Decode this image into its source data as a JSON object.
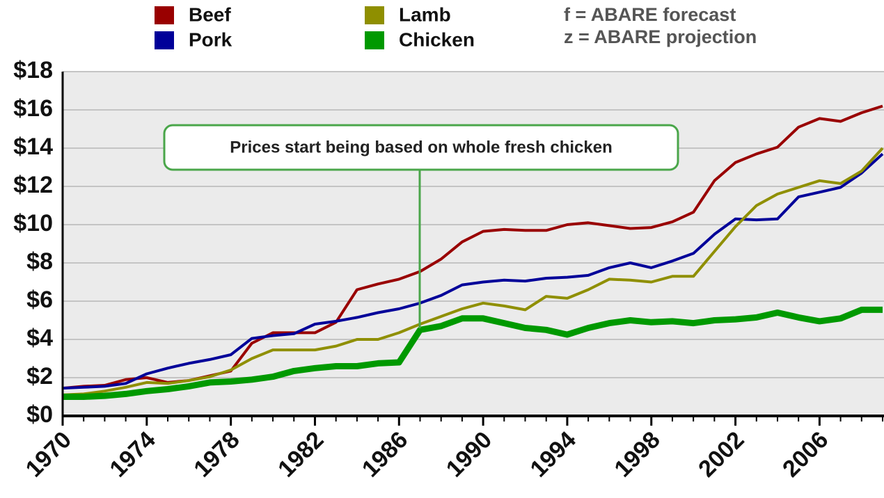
{
  "chart_data": {
    "type": "line",
    "legend_notes": [
      "f  = ABARE forecast",
      "z = ABARE projection"
    ],
    "annotation": "Prices start being based on whole fresh chicken",
    "x": [
      1970,
      1971,
      1972,
      1973,
      1974,
      1975,
      1976,
      1977,
      1978,
      1979,
      1980,
      1981,
      1982,
      1983,
      1984,
      1985,
      1986,
      1987,
      1988,
      1989,
      1990,
      1991,
      1992,
      1993,
      1994,
      1995,
      1996,
      1997,
      1998,
      1999,
      2000,
      2001,
      2002,
      2003,
      2004,
      2005,
      2006,
      2007,
      2008,
      2009
    ],
    "series": [
      {
        "name": "Beef",
        "color": "#990000",
        "values": [
          1.45,
          1.55,
          1.6,
          1.9,
          2.0,
          1.75,
          1.85,
          2.1,
          2.35,
          3.8,
          4.35,
          4.35,
          4.35,
          4.9,
          6.6,
          6.9,
          7.15,
          7.55,
          8.2,
          9.1,
          9.65,
          9.75,
          9.7,
          9.7,
          10.0,
          10.1,
          9.95,
          9.8,
          9.85,
          10.15,
          10.65,
          12.3,
          13.25,
          13.7,
          14.05,
          15.1,
          15.55,
          15.4,
          15.85,
          16.2
        ]
      },
      {
        "name": "Pork",
        "color": "#000099",
        "values": [
          1.45,
          1.5,
          1.55,
          1.7,
          2.2,
          2.5,
          2.75,
          2.95,
          3.2,
          4.05,
          4.2,
          4.3,
          4.8,
          4.95,
          5.15,
          5.4,
          5.6,
          5.9,
          6.3,
          6.85,
          7.0,
          7.1,
          7.05,
          7.2,
          7.25,
          7.35,
          7.75,
          8.0,
          7.75,
          8.1,
          8.5,
          9.5,
          10.3,
          10.25,
          10.3,
          11.45,
          11.7,
          11.95,
          12.7,
          13.7
        ]
      },
      {
        "name": "Lamb",
        "color": "#8f8f00",
        "values": [
          1.1,
          1.15,
          1.3,
          1.5,
          1.75,
          1.7,
          1.85,
          2.05,
          2.4,
          3.0,
          3.45,
          3.45,
          3.45,
          3.65,
          4.0,
          4.0,
          4.35,
          4.8,
          5.2,
          5.6,
          5.9,
          5.75,
          5.55,
          6.25,
          6.15,
          6.6,
          7.15,
          7.1,
          7.0,
          7.3,
          7.3,
          8.6,
          9.9,
          11.0,
          11.6,
          11.95,
          12.3,
          12.15,
          12.8,
          14.0
        ]
      },
      {
        "name": "Chicken",
        "color": "#009900",
        "values": [
          1.0,
          1.0,
          1.05,
          1.15,
          1.3,
          1.4,
          1.55,
          1.75,
          1.8,
          1.9,
          2.05,
          2.35,
          2.5,
          2.6,
          2.6,
          2.75,
          2.8,
          4.5,
          4.7,
          5.1,
          5.1,
          4.85,
          4.6,
          4.5,
          4.25,
          4.6,
          4.85,
          5.0,
          4.9,
          4.95,
          4.85,
          5.0,
          5.05,
          5.15,
          5.4,
          5.15,
          4.95,
          5.1,
          5.55,
          5.55
        ]
      }
    ],
    "xlim": [
      1970,
      2009
    ],
    "xticks": [
      1970,
      1974,
      1978,
      1982,
      1986,
      1990,
      1994,
      1998,
      2002,
      2006
    ],
    "ylim": [
      0,
      18
    ],
    "yticks": [
      {
        "value": 0,
        "label": "$0"
      },
      {
        "value": 2,
        "label": "$2"
      },
      {
        "value": 4,
        "label": "$4"
      },
      {
        "value": 6,
        "label": "$6"
      },
      {
        "value": 8,
        "label": "$8"
      },
      {
        "value": 10,
        "label": "$10"
      },
      {
        "value": 12,
        "label": "$12"
      },
      {
        "value": 14,
        "label": "$14"
      },
      {
        "value": 16,
        "label": "$16"
      },
      {
        "value": 18,
        "label": "$18"
      }
    ],
    "grid": true
  }
}
